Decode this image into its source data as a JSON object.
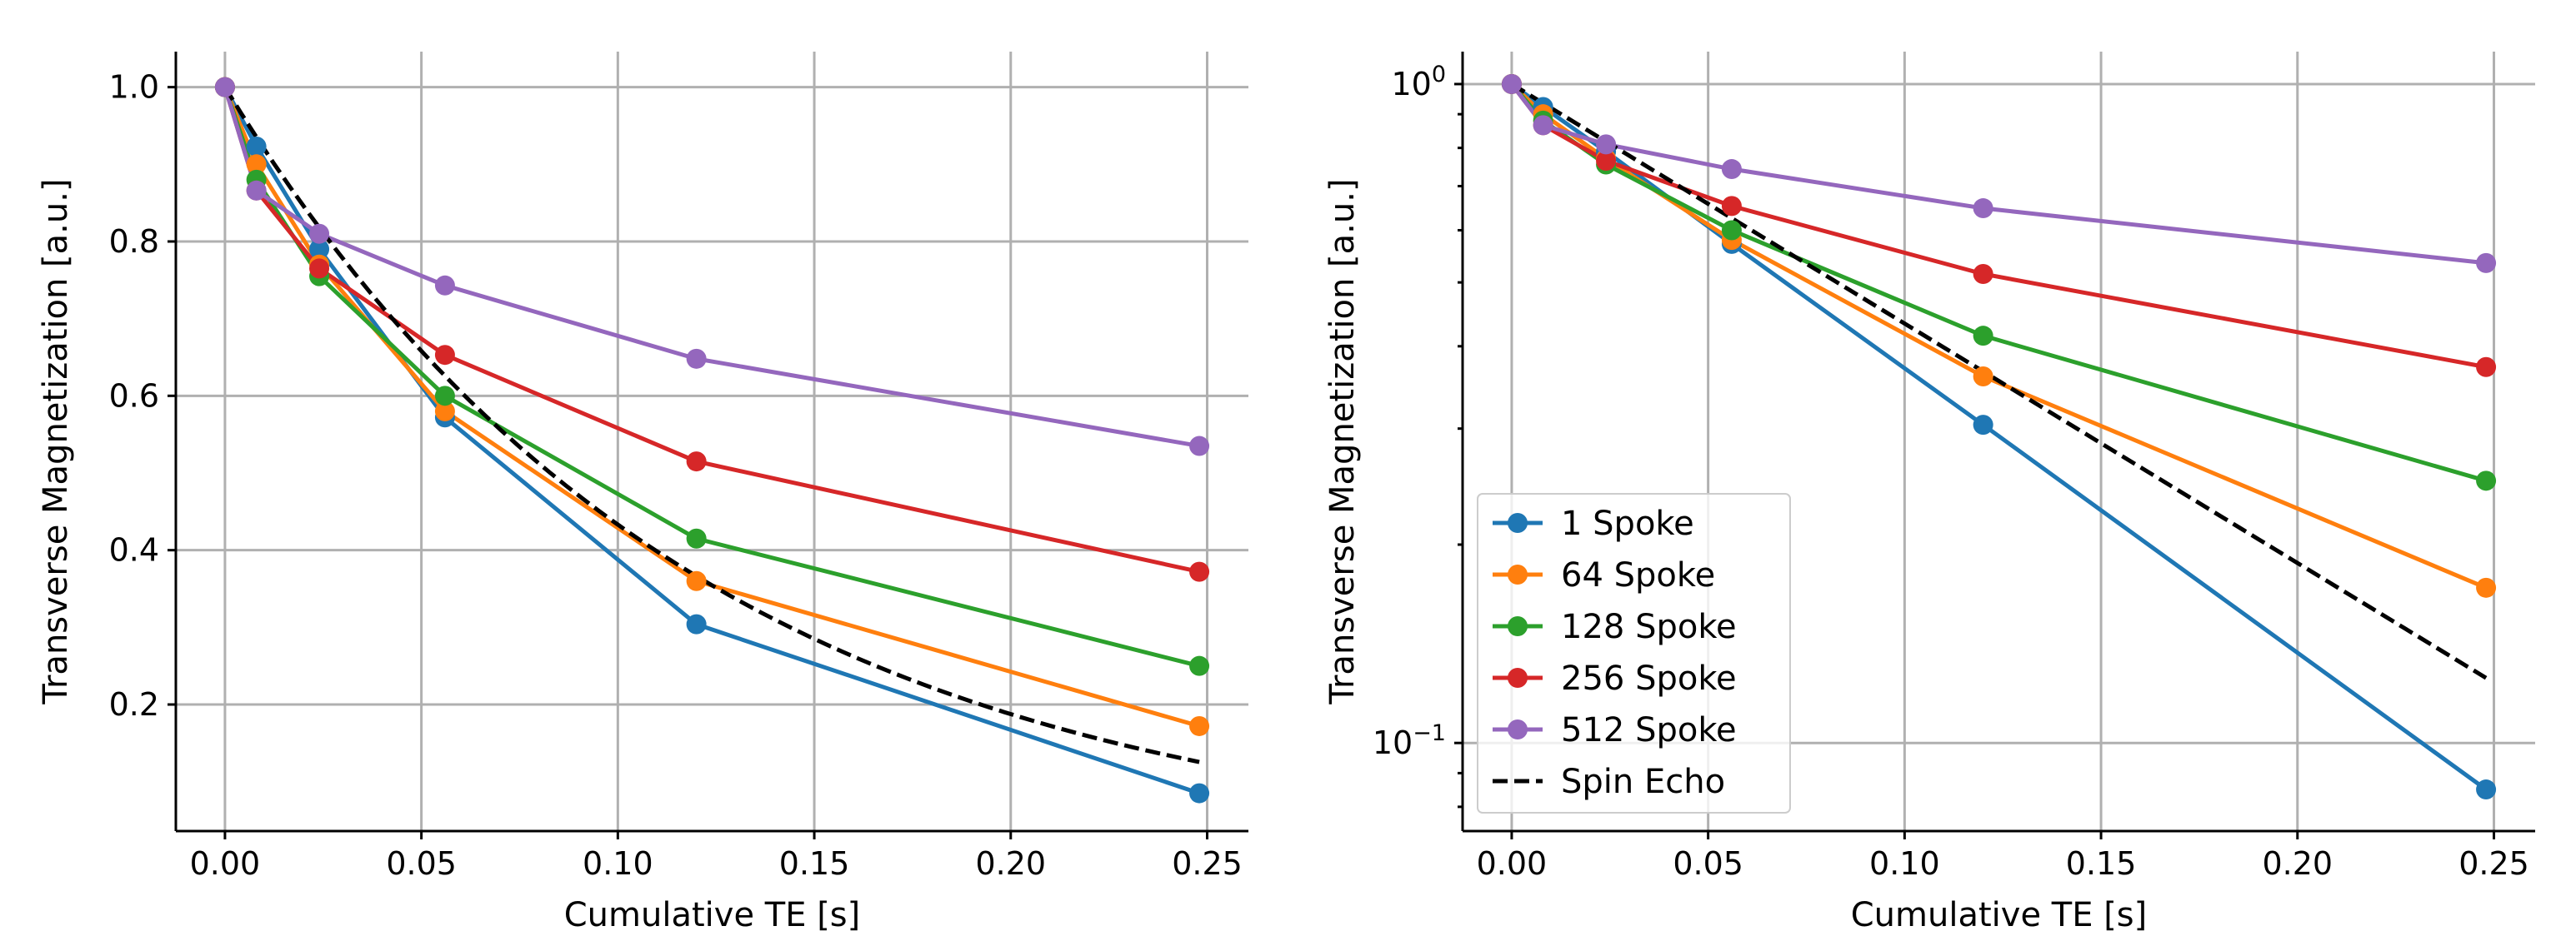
{
  "chart_data": [
    {
      "type": "line",
      "yscale": "linear",
      "xlabel": "Cumulative TE [s]",
      "ylabel": "Transverse Magnetization [a.u.]",
      "xlim": [
        -0.0125,
        0.2605
      ],
      "ylim": [
        0.036,
        1.046
      ],
      "xticks": [
        0.0,
        0.05,
        0.1,
        0.15,
        0.2,
        0.25
      ],
      "xtick_labels": [
        "0.00",
        "0.05",
        "0.10",
        "0.15",
        "0.20",
        "0.25"
      ],
      "yticks": [
        0.2,
        0.4,
        0.6,
        0.8,
        1.0
      ],
      "ytick_labels": [
        "0.2",
        "0.4",
        "0.6",
        "0.8",
        "1.0"
      ],
      "grid": true,
      "legend": null,
      "x": [
        0.0,
        0.008,
        0.024,
        0.056,
        0.12,
        0.248
      ],
      "series": [
        {
          "name": "1 Spoke",
          "color": "#1f77b4",
          "marker": "circle",
          "values": [
            1.0,
            0.923,
            0.79,
            0.572,
            0.304,
            0.085
          ]
        },
        {
          "name": "64 Spoke",
          "color": "#ff7f0e",
          "marker": "circle",
          "values": [
            1.0,
            0.9,
            0.77,
            0.58,
            0.36,
            0.172
          ]
        },
        {
          "name": "128 Spoke",
          "color": "#2ca02c",
          "marker": "circle",
          "values": [
            1.0,
            0.88,
            0.755,
            0.6,
            0.415,
            0.25
          ]
        },
        {
          "name": "256 Spoke",
          "color": "#d62728",
          "marker": "circle",
          "values": [
            1.0,
            0.866,
            0.765,
            0.653,
            0.515,
            0.372
          ]
        },
        {
          "name": "512 Spoke",
          "color": "#9467bd",
          "marker": "circle",
          "values": [
            1.0,
            0.866,
            0.81,
            0.743,
            0.648,
            0.535
          ]
        }
      ],
      "reference": {
        "name": "Spin Echo",
        "color": "#000000",
        "style": "dashed",
        "tau": 0.1195,
        "x_end": 0.248
      }
    },
    {
      "type": "line",
      "yscale": "log",
      "xlabel": "Cumulative TE [s]",
      "ylabel": "Transverse Magnetization [a.u.]",
      "xlim": [
        -0.0125,
        0.2605
      ],
      "ylim": [
        0.0735,
        1.12
      ],
      "xticks": [
        0.0,
        0.05,
        0.1,
        0.15,
        0.2,
        0.25
      ],
      "xtick_labels": [
        "0.00",
        "0.05",
        "0.10",
        "0.15",
        "0.20",
        "0.25"
      ],
      "yticks": [
        0.1,
        1.0
      ],
      "ytick_labels": [
        {
          "base": "10",
          "exp": "−1"
        },
        {
          "base": "10",
          "exp": "0"
        }
      ],
      "grid": true,
      "legend": "lower-left",
      "x": [
        0.0,
        0.008,
        0.024,
        0.056,
        0.12,
        0.248
      ],
      "series": [
        {
          "name": "1 Spoke",
          "color": "#1f77b4",
          "marker": "circle",
          "values": [
            1.0,
            0.923,
            0.79,
            0.572,
            0.304,
            0.085
          ]
        },
        {
          "name": "64 Spoke",
          "color": "#ff7f0e",
          "marker": "circle",
          "values": [
            1.0,
            0.9,
            0.77,
            0.58,
            0.36,
            0.172
          ]
        },
        {
          "name": "128 Spoke",
          "color": "#2ca02c",
          "marker": "circle",
          "values": [
            1.0,
            0.88,
            0.755,
            0.6,
            0.415,
            0.25
          ]
        },
        {
          "name": "256 Spoke",
          "color": "#d62728",
          "marker": "circle",
          "values": [
            1.0,
            0.866,
            0.765,
            0.653,
            0.515,
            0.372
          ]
        },
        {
          "name": "512 Spoke",
          "color": "#9467bd",
          "marker": "circle",
          "values": [
            1.0,
            0.866,
            0.81,
            0.743,
            0.648,
            0.535
          ]
        }
      ],
      "reference": {
        "name": "Spin Echo",
        "color": "#000000",
        "style": "dashed",
        "tau": 0.1195,
        "x_end": 0.248
      }
    }
  ]
}
